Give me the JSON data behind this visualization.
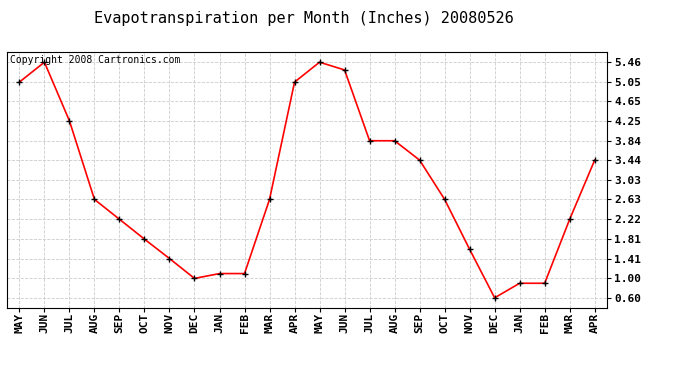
{
  "title": "Evapotranspiration per Month (Inches) 20080526",
  "copyright_text": "Copyright 2008 Cartronics.com",
  "months": [
    "MAY",
    "JUN",
    "JUL",
    "AUG",
    "SEP",
    "OCT",
    "NOV",
    "DEC",
    "JAN",
    "FEB",
    "MAR",
    "APR",
    "MAY",
    "JUN",
    "JUL",
    "AUG",
    "SEP",
    "OCT",
    "NOV",
    "DEC",
    "JAN",
    "FEB",
    "MAR",
    "APR"
  ],
  "values": [
    5.05,
    5.46,
    4.25,
    2.63,
    2.22,
    1.81,
    1.41,
    1.0,
    1.1,
    1.1,
    2.63,
    5.05,
    5.46,
    5.3,
    3.84,
    3.84,
    3.44,
    2.63,
    1.6,
    0.6,
    0.9,
    0.9,
    2.22,
    3.44
  ],
  "yticks": [
    0.6,
    1.0,
    1.41,
    1.81,
    2.22,
    2.63,
    3.03,
    3.44,
    3.84,
    4.25,
    4.65,
    5.05,
    5.46
  ],
  "line_color": "#ff0000",
  "marker_color": "#000000",
  "background_color": "#ffffff",
  "grid_color": "#cccccc",
  "title_fontsize": 11,
  "copyright_fontsize": 7,
  "tick_fontsize": 8,
  "ylim": [
    0.4,
    5.66
  ]
}
